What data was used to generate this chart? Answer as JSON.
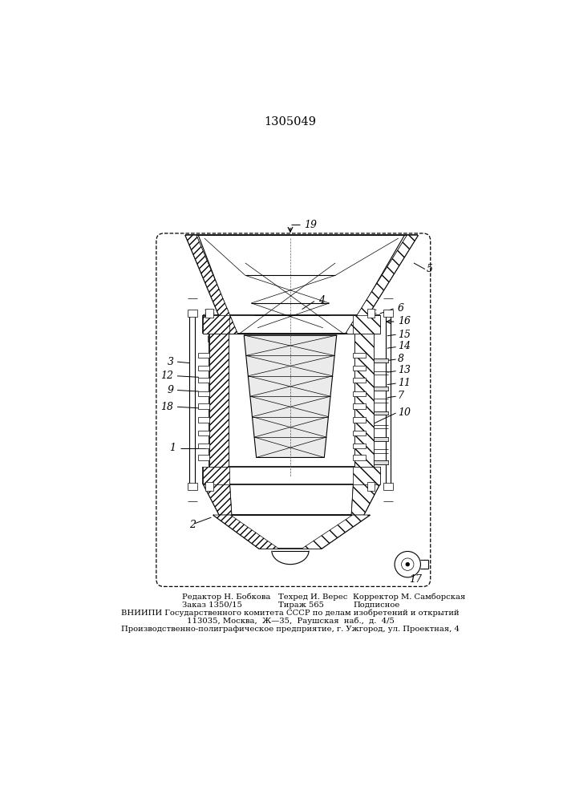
{
  "patent_number": "1305049",
  "bg": "#ffffff",
  "lc": "#1a1a1a",
  "footer_col1_line1": "Редактор Н. Бобкова",
  "footer_col2_line1": "Техред И. Верес",
  "footer_col3_line1": "Корректор М. Самборская",
  "footer_col1_line2": "Заказ 1350/15",
  "footer_col2_line2": "Тираж 565",
  "footer_col3_line2": "Подписное",
  "footer_line3": "ВНИИПИ Государственного комитета СССР по делам изобретений и открытий",
  "footer_line4": "113035, Москва,  Ж—35,  Раушская  наб.,  д.  4/5",
  "footer_line5": "Производственно-полиграфическое предприятие, г. Ужгород, ул. Проектная, 4"
}
